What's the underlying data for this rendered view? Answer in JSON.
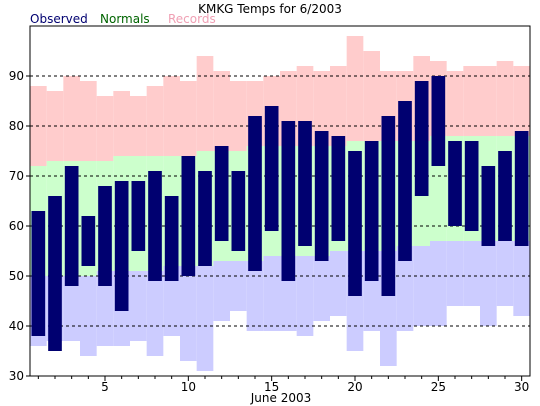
{
  "chart_data": {
    "type": "bar",
    "title": "KMKG Temps for 6/2003",
    "xlabel": "June 2003",
    "ylabel": "",
    "xlim": [
      0.5,
      30.5
    ],
    "ylim": [
      30,
      100
    ],
    "xticks": [
      5,
      10,
      15,
      20,
      25,
      30
    ],
    "yticks": [
      30,
      40,
      50,
      60,
      70,
      80,
      90
    ],
    "dashed_gridlines": [
      40,
      50,
      60,
      70,
      80,
      90
    ],
    "legend": {
      "placement": "top-left",
      "entries": [
        {
          "name": "Observed",
          "color": "#000070"
        },
        {
          "name": "Normals",
          "color": "#006400"
        },
        {
          "name": "Records",
          "color": "#f0a0b4"
        }
      ]
    },
    "colors": {
      "records": "#ffcccc",
      "normals": "#ccffcc",
      "record_low_band": "#ccccff",
      "observed": "#000070"
    },
    "days": [
      1,
      2,
      3,
      4,
      5,
      6,
      7,
      8,
      9,
      10,
      11,
      12,
      13,
      14,
      15,
      16,
      17,
      18,
      19,
      20,
      21,
      22,
      23,
      24,
      25,
      26,
      27,
      28,
      29,
      30
    ],
    "series": [
      {
        "name": "Records",
        "low": [
          36,
          37,
          37,
          34,
          36,
          36,
          37,
          34,
          38,
          33,
          31,
          41,
          43,
          39,
          39,
          39,
          38,
          41,
          42,
          35,
          39,
          32,
          39,
          40,
          40,
          44,
          44,
          40,
          44,
          42
        ],
        "high": [
          88,
          87,
          90,
          89,
          86,
          87,
          86,
          88,
          90,
          89,
          94,
          91,
          89,
          89,
          90,
          91,
          92,
          91,
          92,
          98,
          95,
          91,
          91,
          94,
          93,
          91,
          92,
          92,
          93,
          92
        ]
      },
      {
        "name": "Normals",
        "low": [
          50,
          50,
          50,
          50,
          51,
          51,
          51,
          51,
          52,
          52,
          52,
          53,
          53,
          53,
          54,
          54,
          54,
          54,
          55,
          55,
          55,
          55,
          56,
          56,
          57,
          57,
          57,
          57,
          57,
          57
        ],
        "high": [
          72,
          73,
          73,
          73,
          73,
          74,
          74,
          74,
          74,
          74,
          75,
          75,
          75,
          76,
          76,
          76,
          76,
          76,
          76,
          77,
          77,
          77,
          77,
          77,
          78,
          78,
          78,
          78,
          78,
          78
        ]
      },
      {
        "name": "Observed",
        "low": [
          38,
          35,
          48,
          52,
          48,
          43,
          55,
          49,
          49,
          50,
          52,
          57,
          55,
          51,
          59,
          49,
          56,
          53,
          57,
          46,
          49,
          46,
          53,
          66,
          72,
          60,
          59,
          56,
          57,
          56
        ],
        "high": [
          63,
          66,
          72,
          62,
          68,
          69,
          69,
          71,
          66,
          74,
          71,
          76,
          71,
          82,
          84,
          81,
          81,
          79,
          78,
          75,
          77,
          82,
          85,
          89,
          90,
          77,
          77,
          72,
          75,
          79
        ]
      }
    ]
  }
}
